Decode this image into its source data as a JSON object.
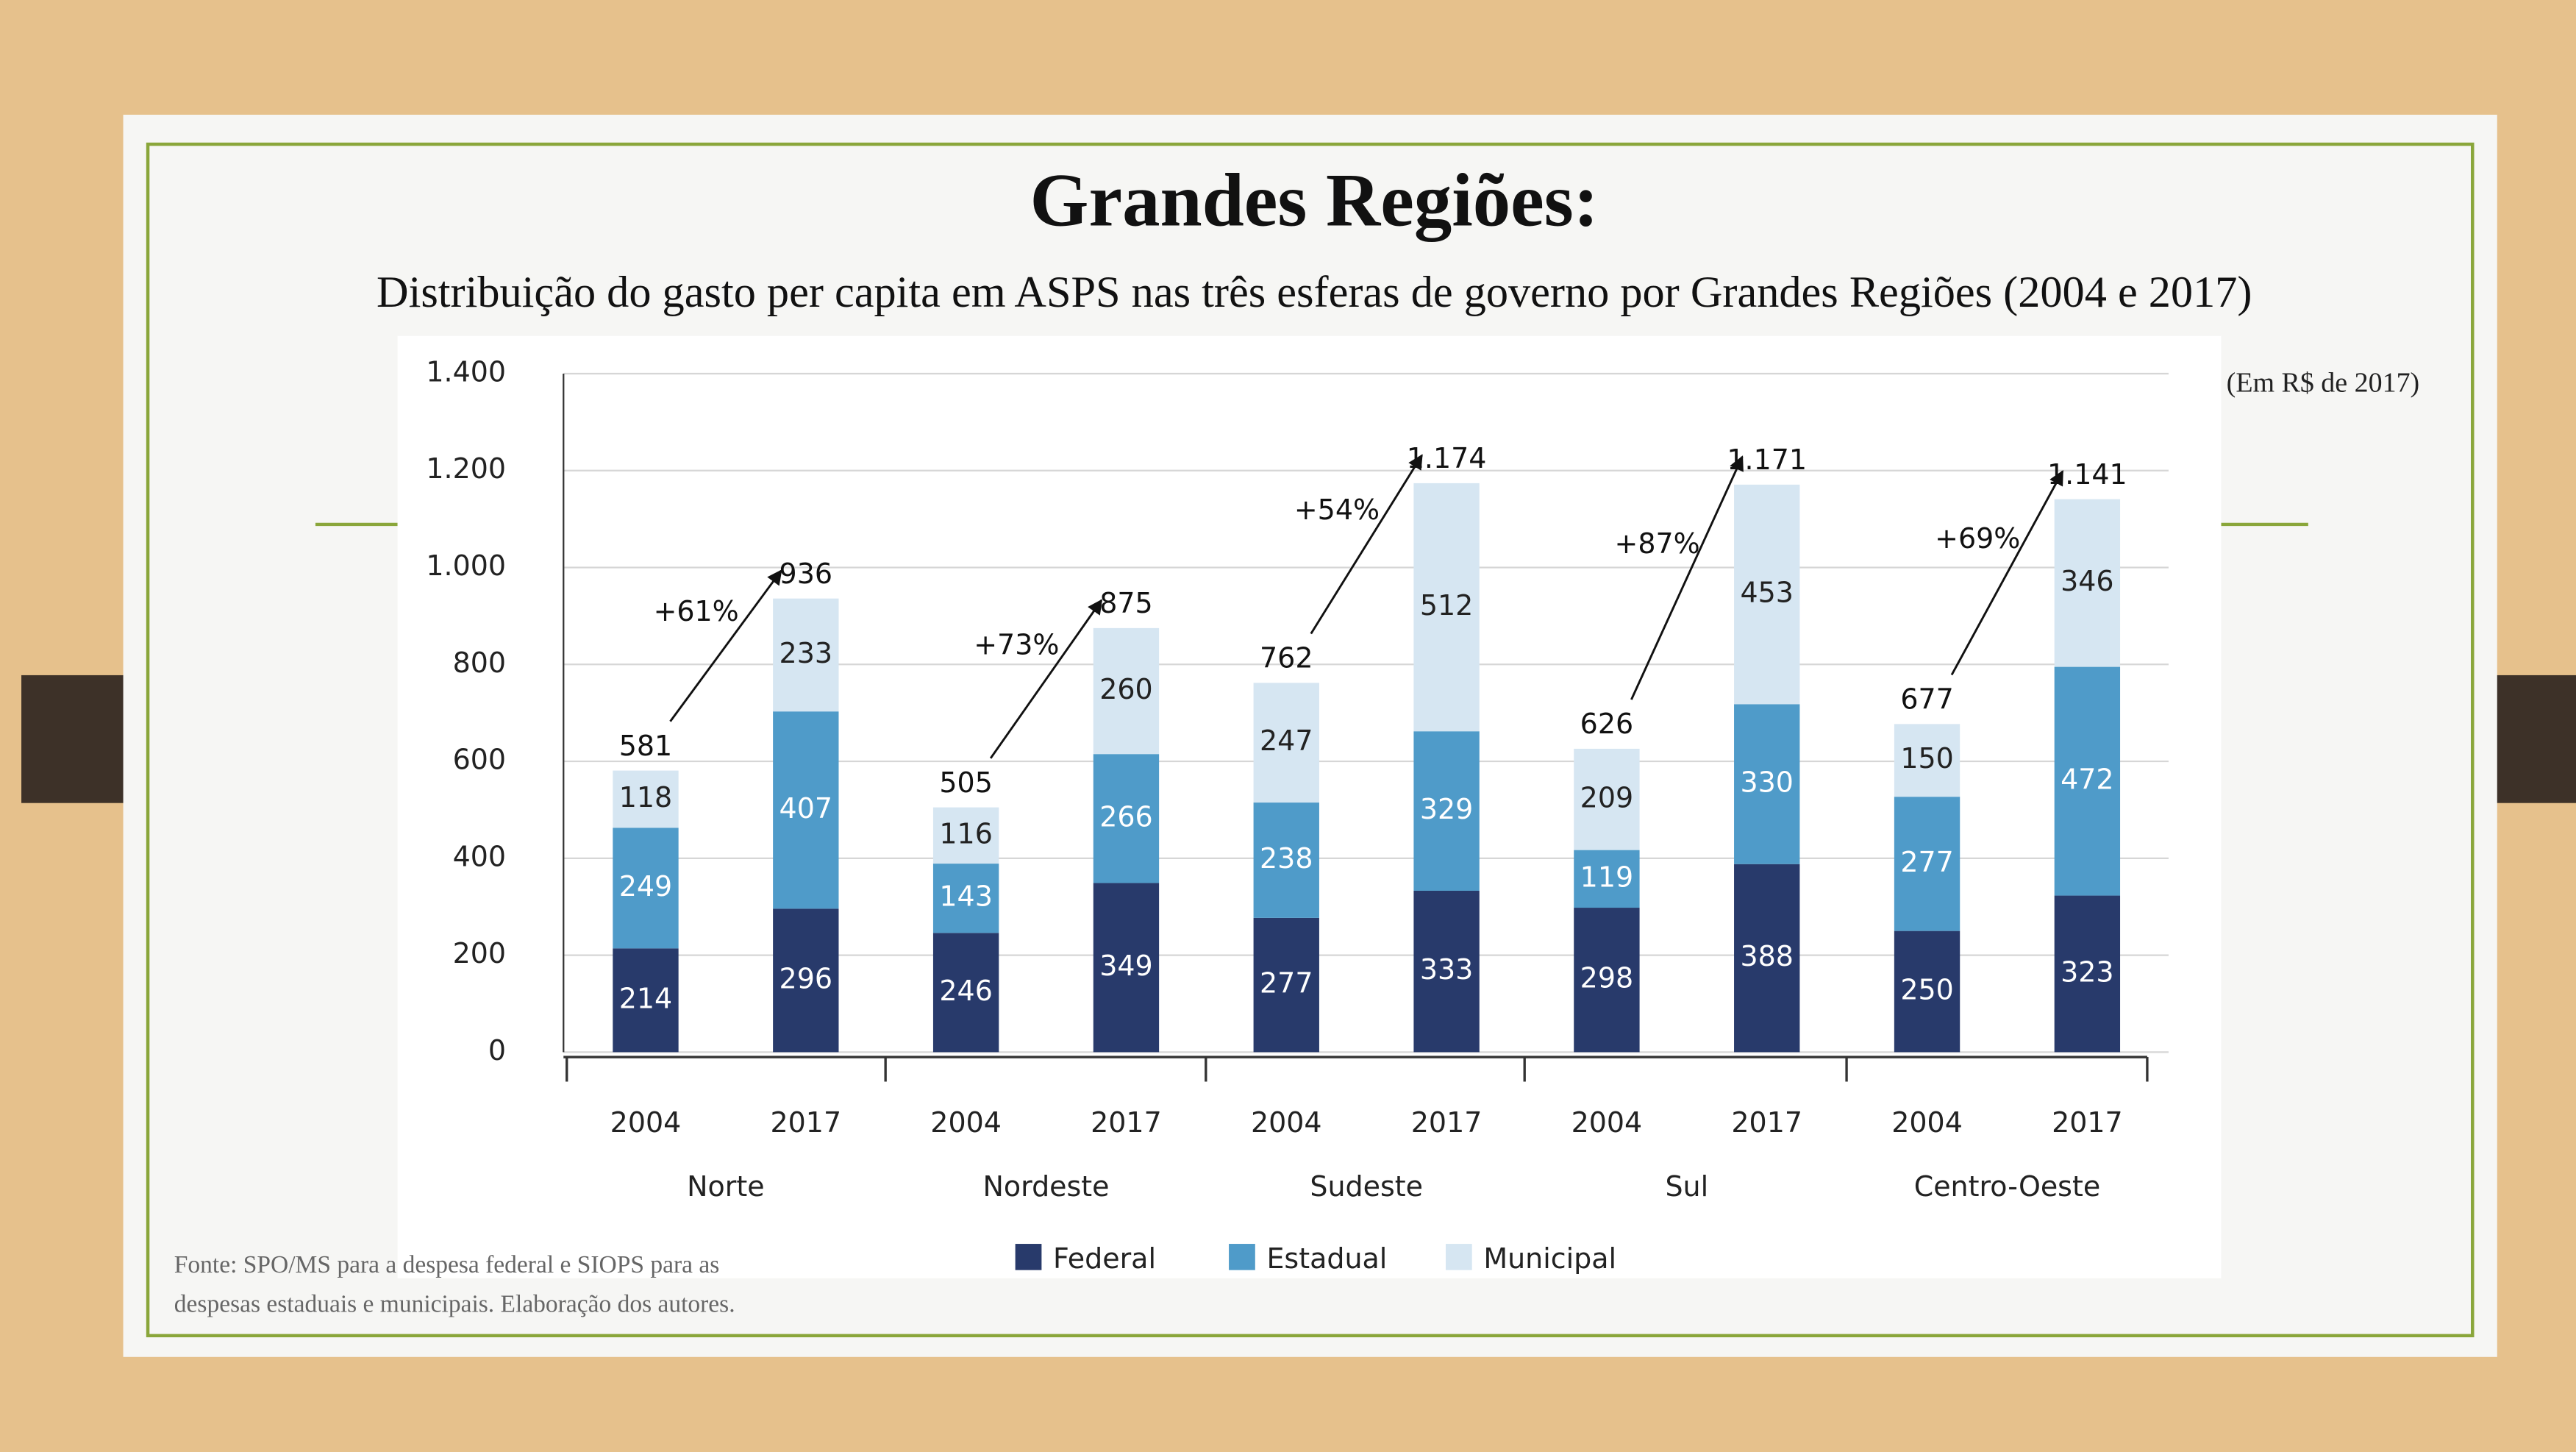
{
  "chart_data": {
    "type": "bar",
    "stacked": true,
    "title": "Grandes Regiões:",
    "subtitle": "Distribuição do gasto per capita em ASPS nas três esferas de governo por Grandes Regiões (2004 e 2017)",
    "unit_note": "(Em R$ de 2017)",
    "source": [
      "Fonte: SPO/MS para a despesa federal e SIOPS para as",
      "despesas estaduais e municipais. Elaboração dos autores."
    ],
    "categories": [
      "2004",
      "2017",
      "2004",
      "2017",
      "2004",
      "2017",
      "2004",
      "2017",
      "2004",
      "2017"
    ],
    "groups": [
      "Norte",
      "Nordeste",
      "Sudeste",
      "Sul",
      "Centro-Oeste"
    ],
    "series": [
      {
        "name": "Federal",
        "color": "#283a6b",
        "values": [
          214,
          296,
          246,
          349,
          277,
          333,
          298,
          388,
          250,
          323
        ]
      },
      {
        "name": "Estadual",
        "color": "#4f9bc9",
        "values": [
          249,
          407,
          143,
          266,
          238,
          329,
          119,
          330,
          277,
          472
        ]
      },
      {
        "name": "Municipal",
        "color": "#d6e6f2",
        "values": [
          118,
          233,
          116,
          260,
          247,
          512,
          209,
          453,
          150,
          346
        ]
      }
    ],
    "totals": {
      "values": [
        581,
        936,
        505,
        875,
        762,
        1174,
        626,
        1171,
        677,
        1141
      ],
      "value_labels": [
        "581",
        "936",
        "505",
        "875",
        "762",
        "1.174",
        "626",
        "1.171",
        "677",
        "1.141"
      ]
    },
    "growth_labels": [
      "+61%",
      "+73%",
      "+54%",
      "+87%",
      "+69%"
    ],
    "ylim": [
      0,
      1400
    ],
    "yticks": [
      0,
      200,
      400,
      600,
      800,
      {
        "value": 1000,
        "label": "1.000"
      },
      {
        "value": 1200,
        "label": "1.200"
      },
      {
        "value": 1400,
        "label": "1.400"
      }
    ],
    "grid": true,
    "legend": "bottom"
  }
}
